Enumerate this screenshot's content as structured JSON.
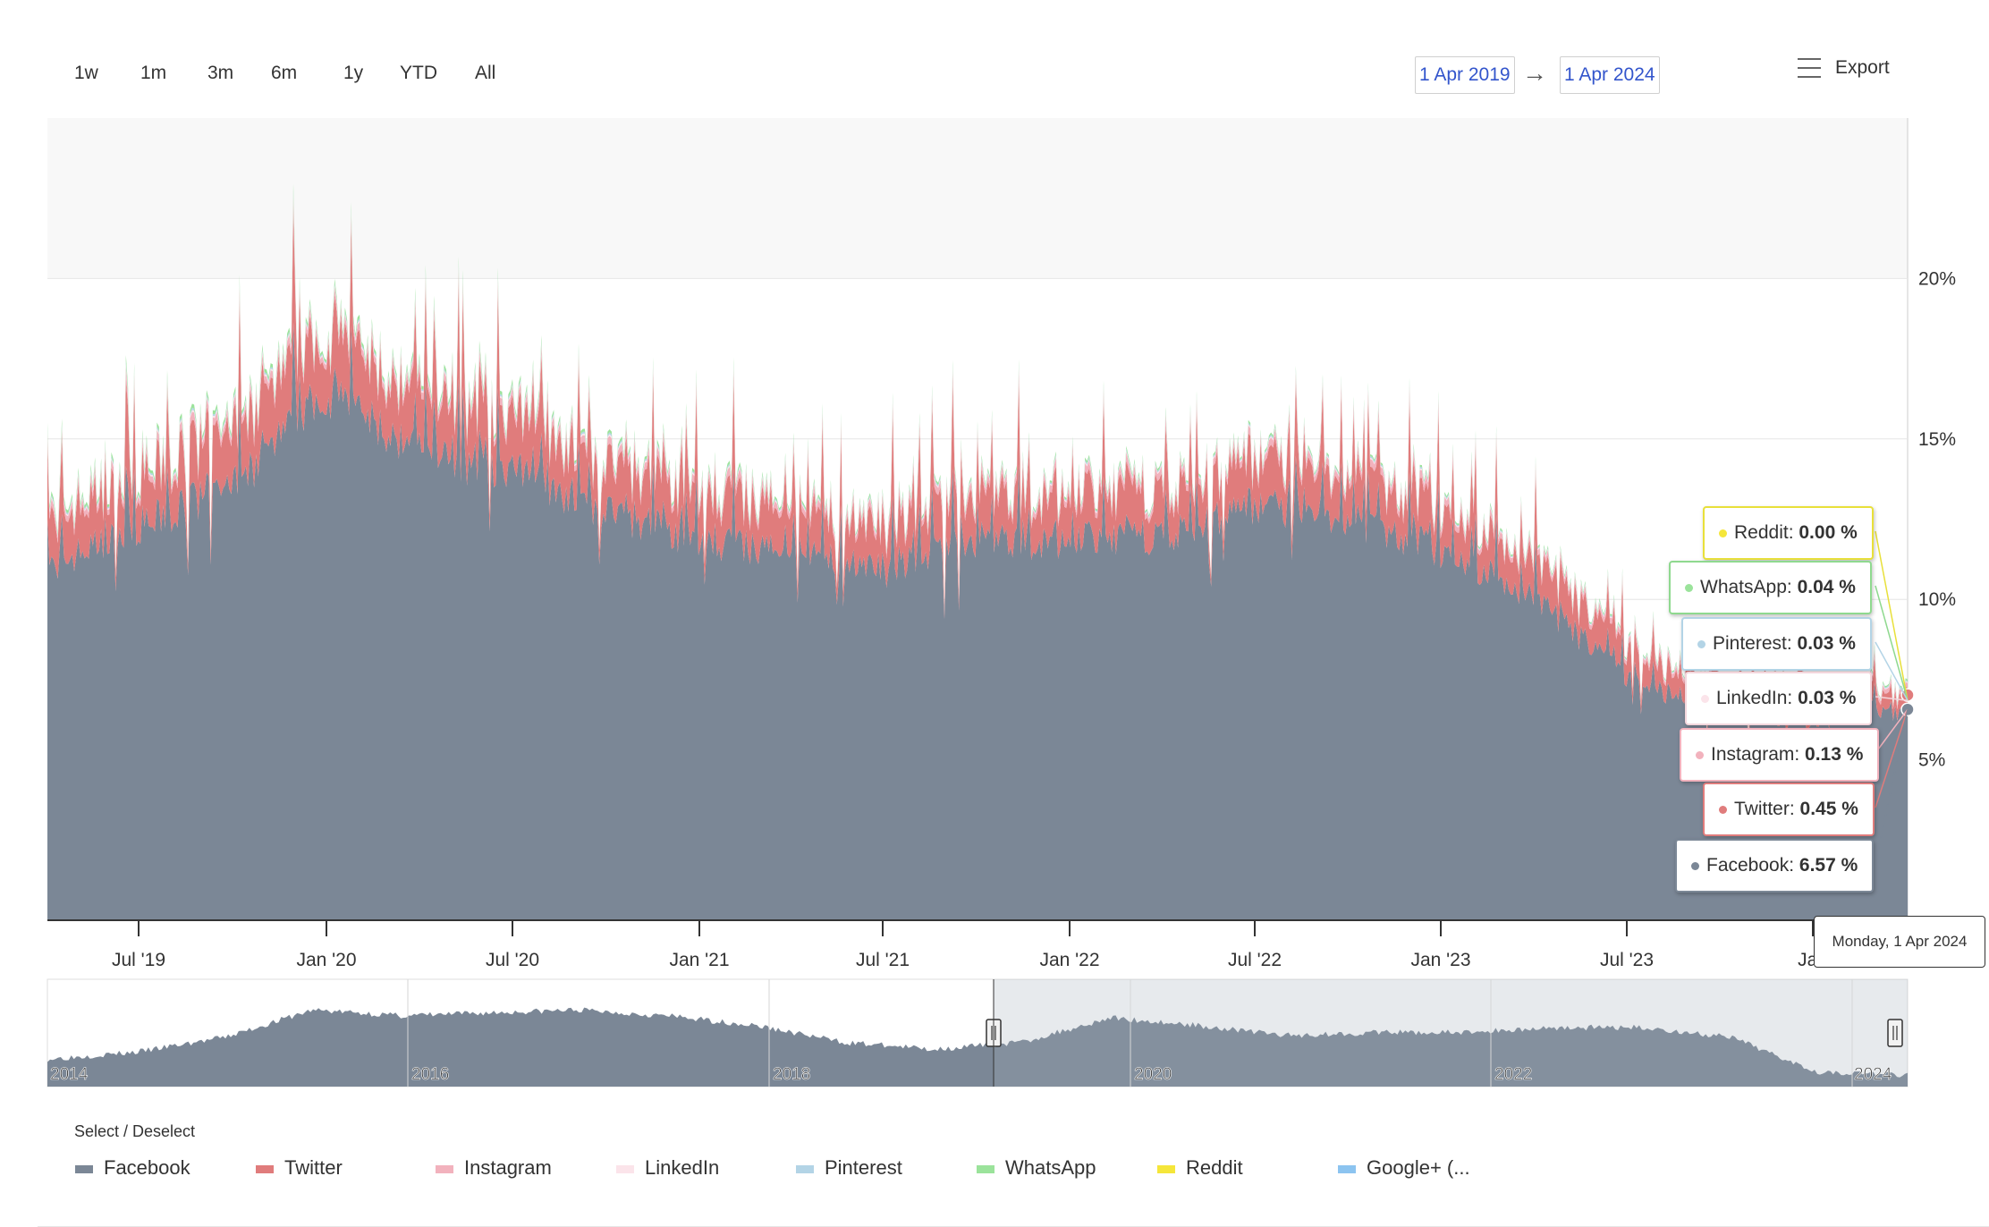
{
  "toolbar": {
    "ranges": [
      "1w",
      "1m",
      "3m",
      "6m",
      "1y",
      "YTD",
      "All"
    ],
    "date_from": "1 Apr 2019",
    "date_to": "1 Apr 2024",
    "arrow": "→",
    "export_label": "Export"
  },
  "tooltip": {
    "date": "Monday, 1 Apr 2024",
    "items": [
      {
        "name": "Reddit",
        "value": "0.00 %",
        "color": "#f5e63a"
      },
      {
        "name": "WhatsApp",
        "value": "0.04 %",
        "color": "#9be39b"
      },
      {
        "name": "Pinterest",
        "value": "0.03 %",
        "color": "#b3d4e6"
      },
      {
        "name": "LinkedIn",
        "value": "0.03 %",
        "color": "#fbe4ea"
      },
      {
        "name": "Instagram",
        "value": "0.13 %",
        "color": "#f2b2bd"
      },
      {
        "name": "Twitter",
        "value": "0.45 %",
        "color": "#e07c7c"
      },
      {
        "name": "Facebook",
        "value": "6.57 %",
        "color": "#7b8796"
      }
    ]
  },
  "navigator": {
    "year_labels": [
      "2014",
      "2016",
      "2018",
      "2020",
      "2022",
      "2024"
    ]
  },
  "legend": {
    "title": "Select / Deselect",
    "items": [
      {
        "name": "Facebook",
        "color": "#7b8796"
      },
      {
        "name": "Twitter",
        "color": "#e07c7c"
      },
      {
        "name": "Instagram",
        "color": "#f2b2bd"
      },
      {
        "name": "LinkedIn",
        "color": "#fbe4ea"
      },
      {
        "name": "Pinterest",
        "color": "#b3d4e6"
      },
      {
        "name": "WhatsApp",
        "color": "#9be39b"
      },
      {
        "name": "Reddit",
        "color": "#f5e63a"
      },
      {
        "name": "Google+ (...",
        "color": "#8cc4f0"
      }
    ]
  },
  "chart_data": {
    "type": "area",
    "stacked": true,
    "x_tick_labels": [
      "Jul '19",
      "Jan '20",
      "Jul '20",
      "Jan '21",
      "Jul '21",
      "Jan '22",
      "Jul '22",
      "Jan '23",
      "Jul '23",
      "Jan"
    ],
    "y_tick_labels": [
      "5%",
      "10%",
      "15%",
      "20%"
    ],
    "ylim": [
      0,
      25
    ],
    "grid": true,
    "x": [
      "2019-04",
      "2019-07",
      "2019-10",
      "2020-01",
      "2020-04",
      "2020-07",
      "2020-10",
      "2021-01",
      "2021-04",
      "2021-07",
      "2021-10",
      "2022-01",
      "2022-04",
      "2022-07",
      "2022-10",
      "2023-01",
      "2023-04",
      "2023-07",
      "2023-10",
      "2024-01",
      "2024-04"
    ],
    "series": [
      {
        "name": "Facebook",
        "values": [
          11.0,
          12.3,
          13.5,
          16.5,
          14.5,
          14.0,
          12.8,
          11.8,
          11.5,
          11.0,
          11.8,
          11.8,
          12.0,
          13.0,
          12.5,
          11.5,
          10.0,
          7.5,
          6.5,
          6.2,
          6.57
        ]
      },
      {
        "name": "Twitter",
        "values": [
          1.4,
          1.5,
          1.6,
          1.8,
          1.6,
          1.6,
          1.4,
          1.4,
          1.3,
          1.3,
          1.3,
          1.3,
          1.3,
          1.4,
          1.3,
          1.2,
          1.1,
          0.8,
          0.6,
          0.5,
          0.45
        ]
      },
      {
        "name": "Instagram",
        "values": [
          0.2,
          0.2,
          0.2,
          0.2,
          0.2,
          0.2,
          0.2,
          0.2,
          0.2,
          0.2,
          0.2,
          0.2,
          0.2,
          0.2,
          0.2,
          0.2,
          0.15,
          0.15,
          0.13,
          0.13,
          0.13
        ]
      },
      {
        "name": "LinkedIn",
        "values": [
          0.05,
          0.05,
          0.05,
          0.05,
          0.05,
          0.05,
          0.05,
          0.05,
          0.04,
          0.04,
          0.04,
          0.04,
          0.04,
          0.04,
          0.04,
          0.04,
          0.03,
          0.03,
          0.03,
          0.03,
          0.03
        ]
      },
      {
        "name": "Pinterest",
        "values": [
          0.05,
          0.05,
          0.05,
          0.05,
          0.05,
          0.05,
          0.05,
          0.04,
          0.04,
          0.04,
          0.04,
          0.04,
          0.04,
          0.04,
          0.04,
          0.04,
          0.03,
          0.03,
          0.03,
          0.03,
          0.03
        ]
      },
      {
        "name": "WhatsApp",
        "values": [
          0.1,
          0.1,
          0.1,
          0.1,
          0.1,
          0.1,
          0.08,
          0.08,
          0.07,
          0.06,
          0.06,
          0.06,
          0.06,
          0.06,
          0.05,
          0.05,
          0.05,
          0.04,
          0.04,
          0.04,
          0.04
        ]
      },
      {
        "name": "Reddit",
        "values": [
          0.0,
          0.0,
          0.0,
          0.0,
          0.0,
          0.0,
          0.0,
          0.0,
          0.0,
          0.0,
          0.0,
          0.0,
          0.0,
          0.0,
          0.0,
          0.0,
          0.0,
          0.0,
          0.0,
          0.0,
          0.0
        ]
      }
    ],
    "navigator_series": {
      "x": [
        "2014-01",
        "2014-07",
        "2015-01",
        "2015-07",
        "2016-01",
        "2016-07",
        "2017-01",
        "2017-07",
        "2018-01",
        "2018-07",
        "2019-01",
        "2019-07",
        "2020-01",
        "2020-07",
        "2021-01",
        "2021-07",
        "2022-01",
        "2022-07",
        "2023-01",
        "2023-07",
        "2024-01",
        "2024-04"
      ],
      "values": [
        0.28,
        0.35,
        0.5,
        0.78,
        0.72,
        0.75,
        0.78,
        0.72,
        0.62,
        0.45,
        0.38,
        0.45,
        0.7,
        0.62,
        0.52,
        0.55,
        0.55,
        0.6,
        0.6,
        0.5,
        0.15,
        0.12
      ]
    }
  }
}
